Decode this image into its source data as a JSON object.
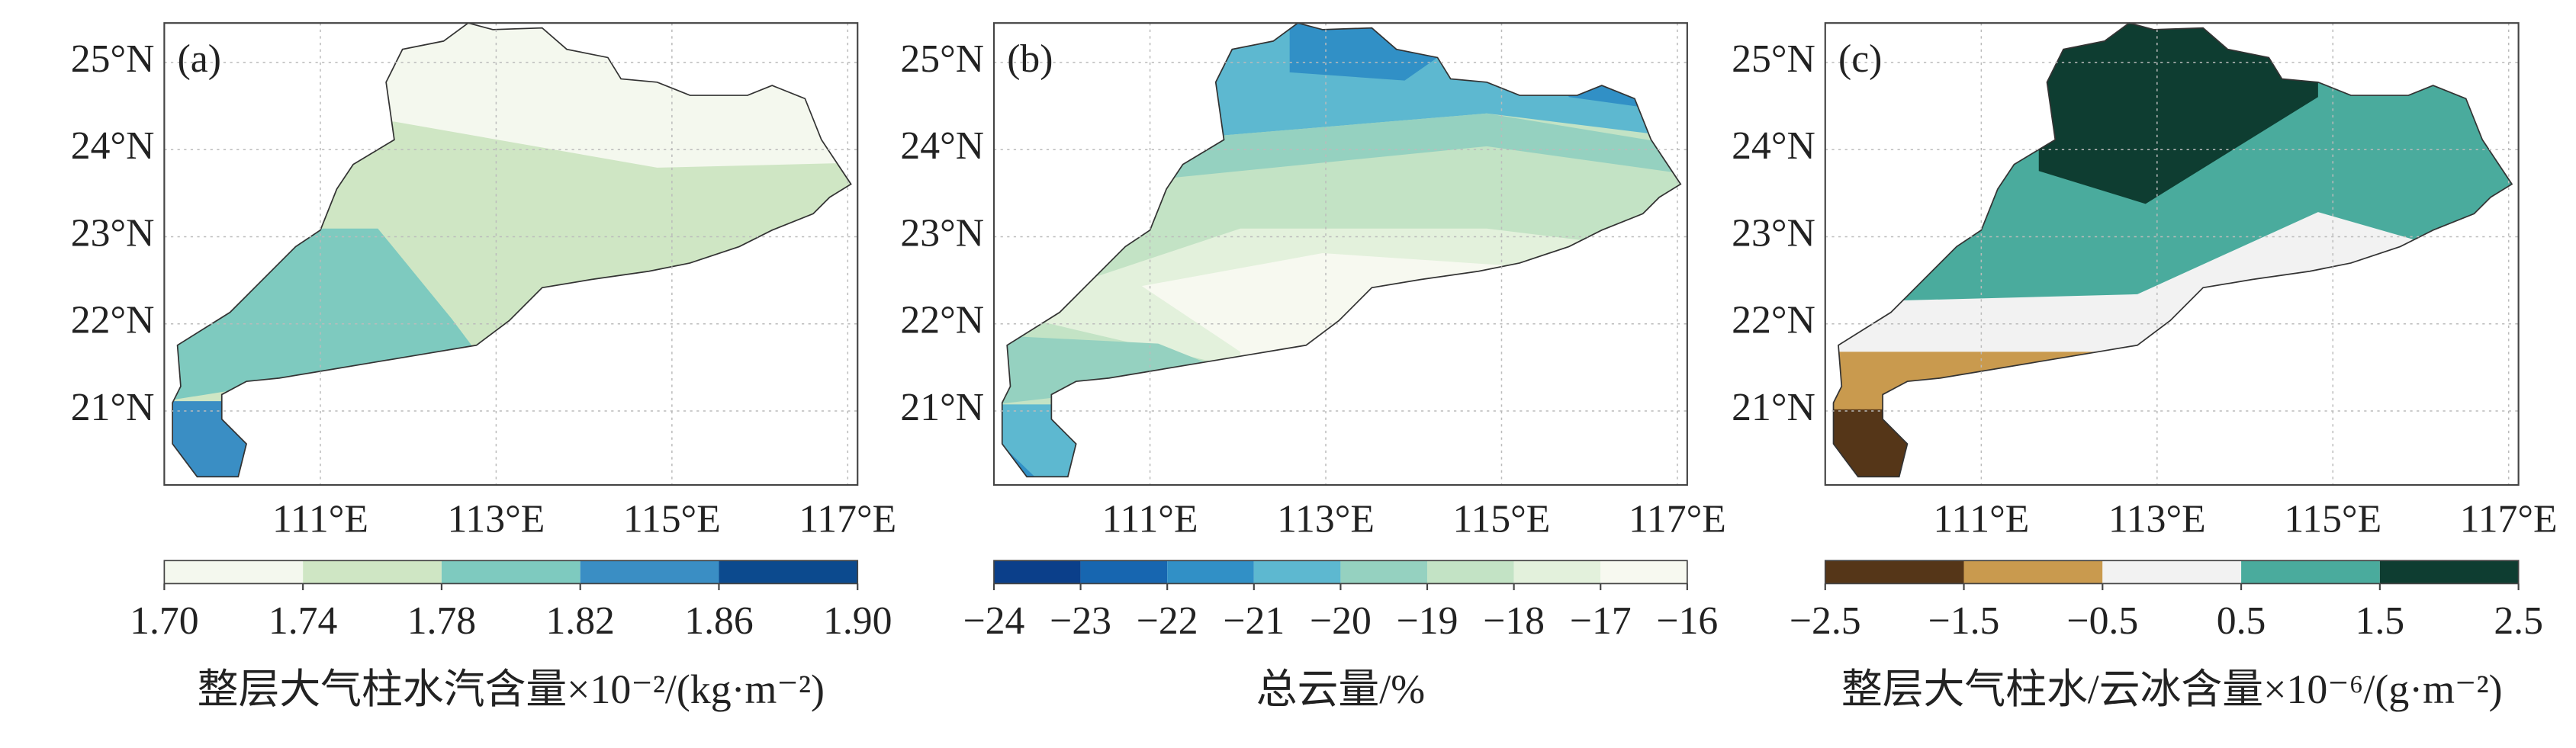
{
  "lat_ticks": [
    {
      "value": 25,
      "label": "25°N"
    },
    {
      "value": 24,
      "label": "24°N"
    },
    {
      "value": 23,
      "label": "23°N"
    },
    {
      "value": 22,
      "label": "22°N"
    },
    {
      "value": 21,
      "label": "21°N"
    }
  ],
  "lon_ticks": [
    {
      "value": 111,
      "label": "111°E"
    },
    {
      "value": 113,
      "label": "113°E"
    },
    {
      "value": 115,
      "label": "115°E"
    },
    {
      "value": 117,
      "label": "117°E"
    }
  ],
  "panels": [
    {
      "label": "(a)",
      "colorbar": {
        "label": "整层大气柱水汽含量×10⁻²/(kg·m⁻²)",
        "ticks": [
          {
            "value": 1.7,
            "label": "1.70"
          },
          {
            "value": 1.74,
            "label": "1.74"
          },
          {
            "value": 1.78,
            "label": "1.78"
          },
          {
            "value": 1.82,
            "label": "1.82"
          },
          {
            "value": 1.86,
            "label": "1.86"
          },
          {
            "value": 1.9,
            "label": "1.90"
          }
        ],
        "colors": [
          "#f4f8ee",
          "#cfe6c4",
          "#7ecabf",
          "#3a8ec4",
          "#0c4a8e"
        ]
      }
    },
    {
      "label": "(b)",
      "colorbar": {
        "label": "总云量/%",
        "ticks": [
          {
            "value": -24,
            "label": "−24"
          },
          {
            "value": -23,
            "label": "−23"
          },
          {
            "value": -22,
            "label": "−22"
          },
          {
            "value": -21,
            "label": "−21"
          },
          {
            "value": -20,
            "label": "−20"
          },
          {
            "value": -19,
            "label": "−19"
          },
          {
            "value": -18,
            "label": "−18"
          },
          {
            "value": -17,
            "label": "−17"
          },
          {
            "value": -16,
            "label": "−16"
          }
        ],
        "colors": [
          "#0b3f8a",
          "#1766b0",
          "#3190c6",
          "#5db8d0",
          "#95d1c0",
          "#c3e3c5",
          "#e3f1dc",
          "#f7f9f0"
        ]
      }
    },
    {
      "label": "(c)",
      "colorbar": {
        "label": "整层大气柱水/云冰含量×10⁻⁶/(g·m⁻²)",
        "ticks": [
          {
            "value": -2.5,
            "label": "−2.5"
          },
          {
            "value": -1.5,
            "label": "−1.5"
          },
          {
            "value": -0.5,
            "label": "−0.5"
          },
          {
            "value": 0.5,
            "label": "0.5"
          },
          {
            "value": 1.5,
            "label": "1.5"
          },
          {
            "value": 2.5,
            "label": "2.5"
          }
        ],
        "colors": [
          "#553618",
          "#c99a4e",
          "#f2f2f2",
          "#4aab9d",
          "#0e3d31"
        ]
      }
    }
  ]
}
